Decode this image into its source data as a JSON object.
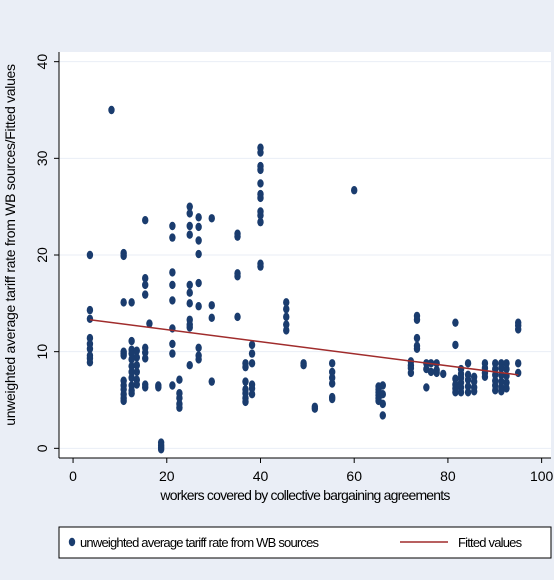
{
  "chart_data": {
    "type": "scatter",
    "title": "",
    "xlabel": "workers covered by collective bargaining agreements",
    "ylabel": "unweighted average tariff rate from WB sources/Fitted values",
    "xlim": [
      -3,
      102
    ],
    "ylim": [
      -1,
      41
    ],
    "xticks": [
      0,
      20,
      40,
      60,
      80,
      100
    ],
    "yticks": [
      0,
      10,
      20,
      30,
      40
    ],
    "xtick_labels": [
      "0",
      "20",
      "40",
      "60",
      "80",
      "100"
    ],
    "ytick_labels": [
      "0",
      "10",
      "20",
      "30",
      "40"
    ],
    "grid": "horizontal",
    "legend_position": "bottom",
    "colors": {
      "background": "#eaeef6",
      "plot_background": "#ffffff",
      "markers": "#1a3c6e",
      "fit_line": "#a02c2c"
    },
    "series": [
      {
        "name": "unweighted average tariff rate from WB sources",
        "kind": "scatter",
        "points": [
          [
            3.6,
            20
          ],
          [
            3.6,
            14.3
          ],
          [
            3.6,
            13.4
          ],
          [
            3.6,
            11.4
          ],
          [
            3.6,
            10.8
          ],
          [
            3.6,
            10.3
          ],
          [
            3.6,
            9.6
          ],
          [
            3.6,
            9.3
          ],
          [
            3.6,
            8.9
          ],
          [
            8.2,
            35
          ],
          [
            10.8,
            20.2
          ],
          [
            10.8,
            19.9
          ],
          [
            10.8,
            15.1
          ],
          [
            10.8,
            10
          ],
          [
            10.8,
            9.8
          ],
          [
            10.8,
            9.6
          ],
          [
            10.8,
            7
          ],
          [
            10.8,
            6.5
          ],
          [
            10.8,
            6.1
          ],
          [
            10.8,
            5.6
          ],
          [
            10.8,
            5.2
          ],
          [
            10.8,
            4.9
          ],
          [
            12.5,
            15.1
          ],
          [
            12.5,
            11.1
          ],
          [
            12.5,
            10.2
          ],
          [
            12.5,
            9.8
          ],
          [
            12.5,
            9.2
          ],
          [
            12.5,
            8.5
          ],
          [
            12.5,
            7.9
          ],
          [
            12.5,
            7.3
          ],
          [
            12.5,
            6.5
          ],
          [
            12.5,
            6
          ],
          [
            12.5,
            5.7
          ],
          [
            13.6,
            10.1
          ],
          [
            13.6,
            9.4
          ],
          [
            13.6,
            8.6
          ],
          [
            13.6,
            7.9
          ],
          [
            13.6,
            7.1
          ],
          [
            13.6,
            6.6
          ],
          [
            15.4,
            23.6
          ],
          [
            15.4,
            17.6
          ],
          [
            15.4,
            16.9
          ],
          [
            15.4,
            15.9
          ],
          [
            15.4,
            10.4
          ],
          [
            15.4,
            9.9
          ],
          [
            15.4,
            9.3
          ],
          [
            15.4,
            6.6
          ],
          [
            15.4,
            6.3
          ],
          [
            16.3,
            12.9
          ],
          [
            18.2,
            6.5
          ],
          [
            18.2,
            6.3
          ],
          [
            18.8,
            0.6
          ],
          [
            18.8,
            0.3
          ],
          [
            18.8,
            0.1
          ],
          [
            18.8,
            -0.1
          ],
          [
            21.2,
            23
          ],
          [
            21.2,
            21.8
          ],
          [
            21.2,
            18.2
          ],
          [
            21.2,
            16.9
          ],
          [
            21.2,
            15.3
          ],
          [
            21.2,
            12.4
          ],
          [
            21.2,
            10.8
          ],
          [
            21.2,
            9.8
          ],
          [
            21.2,
            6.5
          ],
          [
            22.7,
            7.1
          ],
          [
            22.7,
            5.7
          ],
          [
            22.7,
            5.2
          ],
          [
            22.7,
            4.6
          ],
          [
            22.7,
            4.2
          ],
          [
            24.9,
            25
          ],
          [
            24.9,
            24.3
          ],
          [
            24.9,
            23
          ],
          [
            24.9,
            22.1
          ],
          [
            24.9,
            16.9
          ],
          [
            24.9,
            16.1
          ],
          [
            24.9,
            15
          ],
          [
            24.9,
            13.3
          ],
          [
            24.9,
            12.8
          ],
          [
            24.9,
            12.5
          ],
          [
            24.9,
            8.6
          ],
          [
            26.8,
            23.9
          ],
          [
            26.8,
            22.9
          ],
          [
            26.8,
            21.5
          ],
          [
            26.8,
            20.1
          ],
          [
            26.8,
            17.1
          ],
          [
            26.8,
            14.7
          ],
          [
            26.8,
            10.4
          ],
          [
            26.8,
            9.6
          ],
          [
            26.8,
            9.2
          ],
          [
            29.6,
            23.8
          ],
          [
            29.6,
            14.8
          ],
          [
            29.6,
            13.5
          ],
          [
            29.6,
            6.9
          ],
          [
            35.1,
            22.2
          ],
          [
            35.1,
            21.9
          ],
          [
            35.1,
            18.1
          ],
          [
            35.1,
            17.8
          ],
          [
            35.1,
            13.6
          ],
          [
            36.8,
            8.8
          ],
          [
            36.8,
            8.4
          ],
          [
            36.8,
            6.9
          ],
          [
            36.8,
            6.1
          ],
          [
            36.8,
            5.7
          ],
          [
            36.8,
            5.2
          ],
          [
            36.8,
            4.8
          ],
          [
            38.2,
            10.7
          ],
          [
            38.2,
            9.8
          ],
          [
            38.2,
            8.8
          ],
          [
            38.2,
            6.6
          ],
          [
            38.2,
            6.2
          ],
          [
            38.2,
            5.6
          ],
          [
            40,
            31.1
          ],
          [
            40,
            30.6
          ],
          [
            40,
            29.2
          ],
          [
            40,
            28.8
          ],
          [
            40,
            27.4
          ],
          [
            40,
            26.3
          ],
          [
            40,
            25.9
          ],
          [
            40,
            24.5
          ],
          [
            40,
            24.1
          ],
          [
            40,
            23.4
          ],
          [
            40,
            19.1
          ],
          [
            40,
            18.8
          ],
          [
            45.5,
            15.1
          ],
          [
            45.5,
            14.4
          ],
          [
            45.5,
            13.6
          ],
          [
            45.5,
            12.8
          ],
          [
            45.5,
            12.2
          ],
          [
            49.2,
            8.8
          ],
          [
            49.2,
            8.6
          ],
          [
            51.6,
            4.3
          ],
          [
            51.6,
            4.1
          ],
          [
            55.3,
            8.8
          ],
          [
            55.3,
            7.9
          ],
          [
            55.3,
            7.3
          ],
          [
            55.3,
            6.7
          ],
          [
            55.3,
            5.3
          ],
          [
            55.3,
            5.1
          ],
          [
            60,
            26.7
          ],
          [
            65.2,
            6.4
          ],
          [
            65.2,
            6.1
          ],
          [
            65.2,
            5.8
          ],
          [
            65.2,
            5.5
          ],
          [
            65.2,
            5.2
          ],
          [
            65.2,
            4.9
          ],
          [
            66.1,
            6.5
          ],
          [
            66.1,
            5.6
          ],
          [
            66.1,
            4.6
          ],
          [
            66.1,
            3.4
          ],
          [
            72.1,
            9
          ],
          [
            72.1,
            8.6
          ],
          [
            72.1,
            8.3
          ],
          [
            72.1,
            7.8
          ],
          [
            73.4,
            13.7
          ],
          [
            73.4,
            13.3
          ],
          [
            73.4,
            11.4
          ],
          [
            73.4,
            10.6
          ],
          [
            73.4,
            10.3
          ],
          [
            75.4,
            8.8
          ],
          [
            75.4,
            8.2
          ],
          [
            75.4,
            6.3
          ],
          [
            76.4,
            8.8
          ],
          [
            76.4,
            7.9
          ],
          [
            77.6,
            8.8
          ],
          [
            77.6,
            8.1
          ],
          [
            77.6,
            7.8
          ],
          [
            79,
            7.7
          ],
          [
            81.6,
            13
          ],
          [
            81.6,
            10.7
          ],
          [
            81.6,
            7.2
          ],
          [
            81.6,
            6.6
          ],
          [
            81.6,
            6.2
          ],
          [
            81.6,
            5.8
          ],
          [
            82.8,
            8.2
          ],
          [
            82.8,
            7.7
          ],
          [
            82.8,
            7.3
          ],
          [
            82.8,
            6.8
          ],
          [
            82.8,
            6.3
          ],
          [
            82.8,
            5.8
          ],
          [
            84.3,
            8.8
          ],
          [
            84.3,
            7.6
          ],
          [
            84.3,
            7.1
          ],
          [
            84.3,
            6.4
          ],
          [
            84.3,
            5.8
          ],
          [
            85.6,
            7.4
          ],
          [
            85.6,
            6.9
          ],
          [
            85.6,
            6.3
          ],
          [
            85.6,
            5.9
          ],
          [
            87.9,
            8.8
          ],
          [
            87.9,
            8.3
          ],
          [
            87.9,
            7.8
          ],
          [
            87.9,
            7.4
          ],
          [
            90.1,
            8.8
          ],
          [
            90.1,
            8.2
          ],
          [
            90.1,
            7.6
          ],
          [
            90.1,
            7
          ],
          [
            90.1,
            6.5
          ],
          [
            90.1,
            6
          ],
          [
            91.4,
            8.8
          ],
          [
            91.4,
            8.3
          ],
          [
            91.4,
            7.6
          ],
          [
            91.4,
            6.9
          ],
          [
            91.4,
            6.3
          ],
          [
            91.4,
            5.9
          ],
          [
            92.5,
            8.8
          ],
          [
            92.5,
            8.2
          ],
          [
            92.5,
            7.5
          ],
          [
            92.5,
            6.8
          ],
          [
            92.5,
            6.2
          ],
          [
            95,
            13
          ],
          [
            95,
            12.7
          ],
          [
            95,
            12.3
          ],
          [
            95,
            8.8
          ],
          [
            95,
            7.8
          ]
        ]
      },
      {
        "name": "Fitted values",
        "kind": "line",
        "points": [
          [
            3.6,
            13.3
          ],
          [
            95,
            7.6
          ]
        ]
      }
    ]
  }
}
